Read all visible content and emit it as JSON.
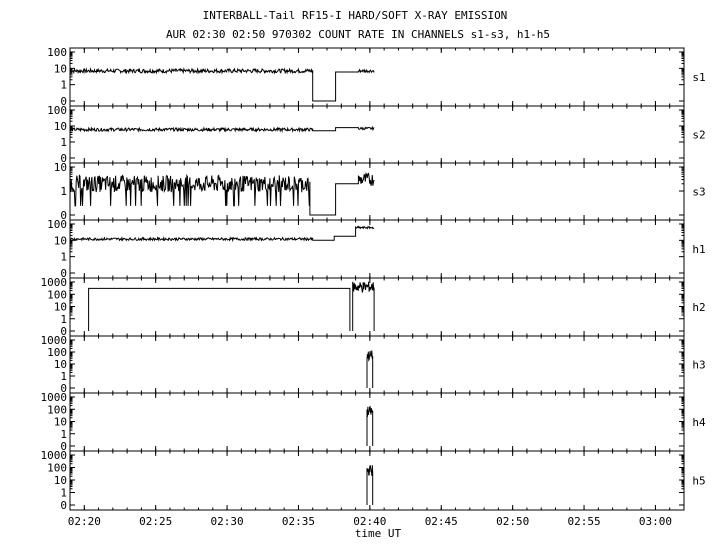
{
  "title": "INTERBALL-Tail RF15-I HARD/SOFT X-RAY EMISSION",
  "subtitle": "AUR 02:30 02:50 970302  COUNT RATE IN CHANNELS s1-s3, h1-h5",
  "chart_data": {
    "type": "line",
    "xlabel": "time UT",
    "x_ticks": [
      "02:20",
      "02:25",
      "02:30",
      "02:35",
      "02:40",
      "02:45",
      "02:50",
      "02:55",
      "03:00"
    ],
    "x_range_minutes": [
      19.0,
      62.0
    ],
    "x_tick_minutes": [
      20,
      25,
      30,
      35,
      40,
      45,
      50,
      55,
      60
    ],
    "y_scale": "log (0 shown at bottom)",
    "grid": false,
    "panels": [
      {
        "name": "s1",
        "y_ticks": [
          "100",
          "10",
          "1",
          "0"
        ],
        "ymax_label": "100",
        "trace": {
          "start": 19.0,
          "end": 37.5,
          "level": 7,
          "noise": 0.12,
          "gaps": [
            [
              36.0,
              37.6
            ]
          ],
          "resume": {
            "start": 37.6,
            "end": 39.2,
            "level": 6
          },
          "tail": {
            "start": 39.2,
            "end": 40.3,
            "level": 7
          }
        }
      },
      {
        "name": "s2",
        "y_ticks": [
          "100",
          "10",
          "1",
          "0"
        ],
        "ymax_label": "100",
        "trace": {
          "start": 19.0,
          "end": 36.0,
          "level": 6,
          "noise": 0.1,
          "step": {
            "start": 36.0,
            "end": 37.6,
            "level": 5
          },
          "resume": {
            "start": 37.6,
            "end": 39.2,
            "level": 8
          },
          "tail": {
            "start": 39.2,
            "end": 40.3,
            "level": 7
          }
        }
      },
      {
        "name": "s3",
        "y_ticks": [
          "10",
          "1",
          "0"
        ],
        "ymax_label": "10",
        "trace": {
          "start": 19.0,
          "end": 35.8,
          "level": 2,
          "noise": 0.35,
          "gaps": [
            [
              35.8,
              37.6
            ]
          ],
          "resume": {
            "start": 37.6,
            "end": 39.2,
            "level": 2
          },
          "tail": {
            "start": 39.2,
            "end": 40.3,
            "level": 3
          }
        }
      },
      {
        "name": "h1",
        "y_ticks": [
          "100",
          "10",
          "1",
          "0"
        ],
        "ymax_label": "100",
        "trace": {
          "start": 19.0,
          "end": 36.0,
          "level": 12,
          "noise": 0.08,
          "step": {
            "start": 36.0,
            "end": 37.5,
            "level": 10
          },
          "resume": {
            "start": 37.5,
            "end": 39.0,
            "level": 18
          },
          "tail": {
            "start": 39.0,
            "end": 40.3,
            "level": 60
          }
        }
      },
      {
        "name": "h2",
        "y_ticks": [
          "1000",
          "100",
          "10",
          "1",
          "0"
        ],
        "ymax_label": "1000",
        "trace": {
          "flat_start": 20.3,
          "flat_end": 38.6,
          "flat_level": 300,
          "burst_start": 38.8,
          "burst_end": 40.3,
          "burst_level": 400
        }
      },
      {
        "name": "h3",
        "y_ticks": [
          "1000",
          "100",
          "10",
          "1",
          "0"
        ],
        "ymax_label": "1000",
        "trace": {
          "burst_start": 39.8,
          "burst_end": 40.2,
          "burst_level": 50
        }
      },
      {
        "name": "h4",
        "y_ticks": [
          "1000",
          "100",
          "10",
          "1",
          "0"
        ],
        "ymax_label": "1000",
        "trace": {
          "burst_start": 39.8,
          "burst_end": 40.2,
          "burst_level": 60
        }
      },
      {
        "name": "h5",
        "y_ticks": [
          "1000",
          "100",
          "10",
          "1",
          "0"
        ],
        "ymax_label": "1000",
        "trace": {
          "burst_start": 39.8,
          "burst_end": 40.2,
          "burst_level": 60
        }
      }
    ]
  }
}
